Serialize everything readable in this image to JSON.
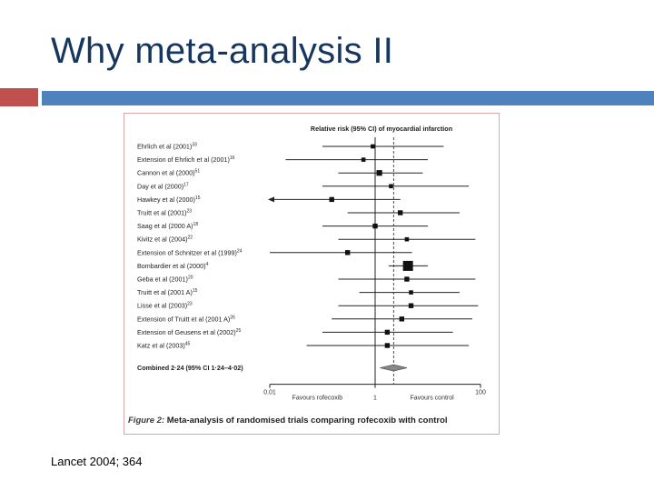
{
  "slide": {
    "title": "Why meta-analysis II",
    "source": "Lancet 2004; 364"
  },
  "colors": {
    "title": "#17365d",
    "accent_square": "#c0504d",
    "accent_bar": "#4f81bd"
  },
  "figure": {
    "caption_label": "Figure 2:",
    "caption_text": "Meta-analysis of randomised trials comparing rofecoxib with control"
  },
  "chart_data": {
    "type": "forest",
    "title": "Relative risk (95% CI) of myocardial infarction",
    "scale": "log",
    "xlim": [
      0.01,
      100
    ],
    "reference_value": 1,
    "pooled_reference": 2.24,
    "x_tick_labels": [
      "0.01",
      "1",
      "100"
    ],
    "left_favour_label": "Favours rofecoxib",
    "right_favour_label": "Favours control",
    "studies": [
      {
        "label": "Ehrlich et al (2001)",
        "ref": "33",
        "rr": 0.9,
        "lower": 0.1,
        "upper": 20,
        "weight": 1
      },
      {
        "label": "Extension of Ehrlich et al (2001)",
        "ref": "16",
        "rr": 0.6,
        "lower": 0.02,
        "upper": 10,
        "weight": 1
      },
      {
        "label": "Cannon et al (2000)",
        "ref": "51",
        "rr": 1.2,
        "lower": 0.2,
        "upper": 8,
        "weight": 2
      },
      {
        "label": "Day et al (2000)",
        "ref": "17",
        "rr": 2.0,
        "lower": 0.1,
        "upper": 60,
        "weight": 1
      },
      {
        "label": "Hawkey et al (2000)",
        "ref": "15",
        "rr": 0.15,
        "lower": 0.01,
        "upper": 3,
        "weight": 1.5,
        "arrow_left": true
      },
      {
        "label": "Truitt et al (2001)",
        "ref": "23",
        "rr": 3.0,
        "lower": 0.3,
        "upper": 40,
        "weight": 1.5
      },
      {
        "label": "Saag et al (2000 A)",
        "ref": "18",
        "rr": 1.0,
        "lower": 0.1,
        "upper": 10,
        "weight": 1.5
      },
      {
        "label": "Kivitz et al (2004)",
        "ref": "22",
        "rr": 4.0,
        "lower": 0.2,
        "upper": 80,
        "weight": 1
      },
      {
        "label": "Extension of Schnitzer et al (1999)",
        "ref": "24",
        "rr": 0.3,
        "lower": 0.01,
        "upper": 5,
        "weight": 1.5
      },
      {
        "label": "Bombardier et al (2000)",
        "ref": "4",
        "rr": 4.2,
        "lower": 1.8,
        "upper": 10,
        "weight": 5
      },
      {
        "label": "Geba et al (2001)",
        "ref": "20",
        "rr": 4.0,
        "lower": 0.2,
        "upper": 80,
        "weight": 1.5
      },
      {
        "label": "Truitt et al (2001 A)",
        "ref": "15",
        "rr": 4.8,
        "lower": 0.5,
        "upper": 40,
        "weight": 1
      },
      {
        "label": "Lisse et al (2003)",
        "ref": "23",
        "rr": 4.8,
        "lower": 0.2,
        "upper": 90,
        "weight": 1.5
      },
      {
        "label": "Extension of Truitt et al (2001 A)",
        "ref": "26",
        "rr": 3.2,
        "lower": 0.15,
        "upper": 70,
        "weight": 1.5
      },
      {
        "label": "Extension of Geusens et al (2002)",
        "ref": "25",
        "rr": 1.7,
        "lower": 0.1,
        "upper": 30,
        "weight": 1.5
      },
      {
        "label": "Katz et al (2003)",
        "ref": "45",
        "rr": 1.7,
        "lower": 0.05,
        "upper": 60,
        "weight": 1.5
      }
    ],
    "combined": {
      "label": "Combined 2·24 (95% CI 1·24–4·02)",
      "rr": 2.24,
      "lower": 1.24,
      "upper": 4.02
    }
  }
}
